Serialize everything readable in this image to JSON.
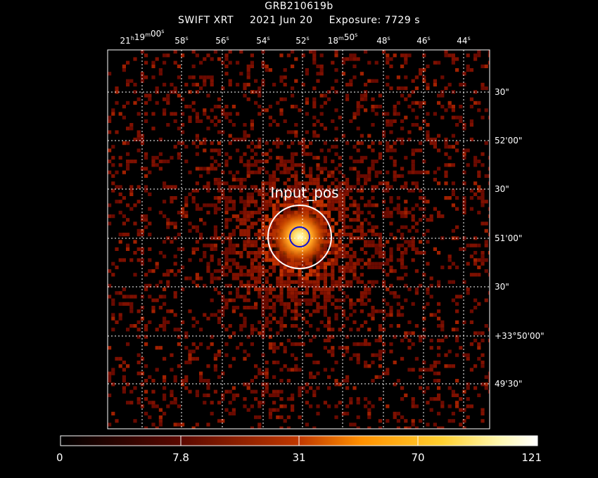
{
  "header": {
    "title": "GRB210619b",
    "instrument": "SWIFT XRT",
    "date": "2021 Jun 20",
    "exposure": "Exposure: 7729 s"
  },
  "axes": {
    "ra_ticks": [
      {
        "h": "21",
        "m": "19",
        "s": "00",
        "sec_only": false
      },
      {
        "s": "58",
        "sec_only": true
      },
      {
        "s": "56",
        "sec_only": true
      },
      {
        "s": "54",
        "sec_only": true
      },
      {
        "s": "52",
        "sec_only": true
      },
      {
        "h": "",
        "m": "18",
        "s": "50",
        "sec_only": false,
        "no_hour": true
      },
      {
        "s": "48",
        "sec_only": true
      },
      {
        "s": "46",
        "sec_only": true
      },
      {
        "s": "44",
        "sec_only": true
      }
    ],
    "dec_ticks": [
      "30\"",
      "52'00\"",
      "30\"",
      "51'00\"",
      "30\"",
      "+33°50'00\"",
      "49'30\""
    ]
  },
  "source": {
    "label": "Input_pos",
    "outer_circle_color": "#ffffff",
    "inner_circle_color": "#1010d0"
  },
  "colorbar": {
    "tick_labels": [
      "0",
      "7.8",
      "31",
      "70",
      "121"
    ],
    "tick_values": [
      0,
      7.8,
      31,
      70,
      121
    ],
    "max": 121,
    "colormap": "heat (black-red-orange-yellow-white)"
  },
  "colors": {
    "background": "#000000",
    "grid": "#ffffff",
    "frame": "#ffffff"
  }
}
